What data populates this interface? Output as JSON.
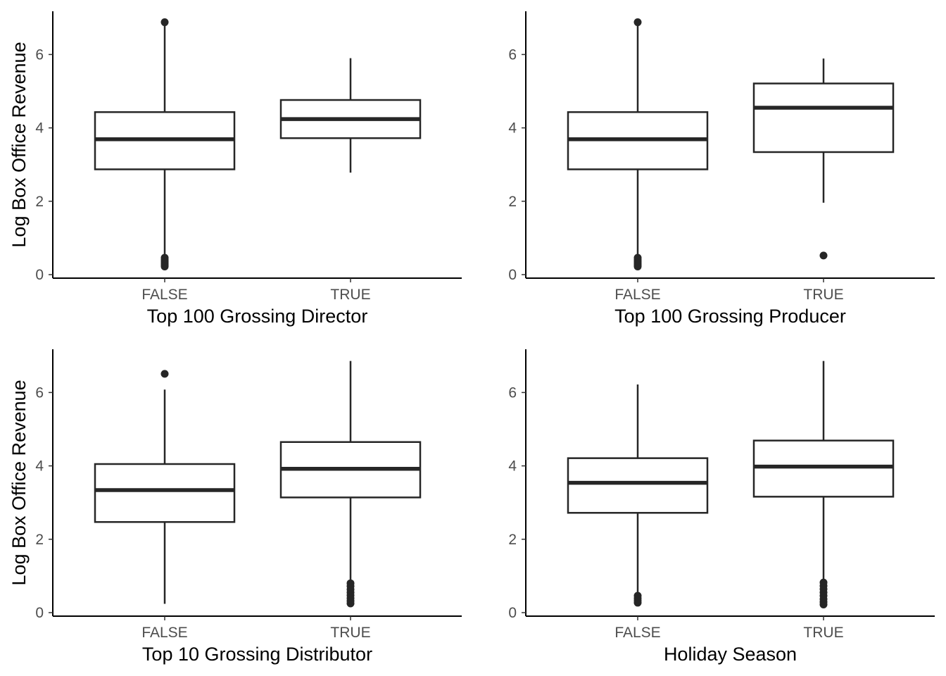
{
  "colors": {
    "ink": "#262626",
    "axis": "#000000",
    "tick_text": "#4d4d4d",
    "background": "#ffffff"
  },
  "chart_data": [
    {
      "type": "box",
      "xlabel": "Top 100 Grossing Director",
      "ylabel": "Log Box Office Revenue",
      "ylim": [
        0,
        7
      ],
      "yticks": [
        "0",
        "2",
        "4",
        "6"
      ],
      "categories": [
        "FALSE",
        "TRUE"
      ],
      "boxes": [
        {
          "category": "FALSE",
          "min": 0.55,
          "q1": 2.87,
          "median": 3.69,
          "q3": 4.43,
          "max": 6.88,
          "outliers": [
            6.88,
            0.46,
            0.41,
            0.37,
            0.33,
            0.29,
            0.25,
            0.22
          ]
        },
        {
          "category": "TRUE",
          "min": 2.78,
          "q1": 3.72,
          "median": 4.24,
          "q3": 4.76,
          "max": 5.9,
          "outliers": []
        }
      ]
    },
    {
      "type": "box",
      "xlabel": "Top 100 Grossing Producer",
      "ylabel": "",
      "ylim": [
        0,
        7
      ],
      "yticks": [
        "0",
        "2",
        "4",
        "6"
      ],
      "categories": [
        "FALSE",
        "TRUE"
      ],
      "boxes": [
        {
          "category": "FALSE",
          "min": 0.55,
          "q1": 2.87,
          "median": 3.69,
          "q3": 4.43,
          "max": 6.88,
          "outliers": [
            6.88,
            0.46,
            0.41,
            0.37,
            0.33,
            0.29,
            0.25,
            0.22
          ]
        },
        {
          "category": "TRUE",
          "min": 1.96,
          "q1": 3.34,
          "median": 4.55,
          "q3": 5.21,
          "max": 5.89,
          "outliers": [
            0.52
          ]
        }
      ]
    },
    {
      "type": "box",
      "xlabel": "Top 10 Grossing Distributor",
      "ylabel": "Log Box Office Revenue",
      "ylim": [
        0,
        7
      ],
      "yticks": [
        "0",
        "2",
        "4",
        "6"
      ],
      "categories": [
        "FALSE",
        "TRUE"
      ],
      "boxes": [
        {
          "category": "FALSE",
          "min": 0.24,
          "q1": 2.47,
          "median": 3.34,
          "q3": 4.05,
          "max": 6.08,
          "outliers": [
            6.51
          ]
        },
        {
          "category": "TRUE",
          "min": 0.9,
          "q1": 3.14,
          "median": 3.92,
          "q3": 4.65,
          "max": 6.86,
          "outliers": [
            0.8,
            0.72,
            0.63,
            0.55,
            0.47,
            0.39,
            0.32,
            0.25
          ]
        }
      ]
    },
    {
      "type": "box",
      "xlabel": "Holiday Season",
      "ylabel": "",
      "ylim": [
        0,
        7
      ],
      "yticks": [
        "0",
        "2",
        "4",
        "6"
      ],
      "categories": [
        "FALSE",
        "TRUE"
      ],
      "boxes": [
        {
          "category": "FALSE",
          "min": 0.55,
          "q1": 2.72,
          "median": 3.54,
          "q3": 4.21,
          "max": 6.22,
          "outliers": [
            0.46,
            0.39,
            0.33,
            0.27
          ]
        },
        {
          "category": "TRUE",
          "min": 0.9,
          "q1": 3.16,
          "median": 3.98,
          "q3": 4.69,
          "max": 6.86,
          "outliers": [
            0.82,
            0.73,
            0.64,
            0.55,
            0.46,
            0.37,
            0.29,
            0.22
          ]
        }
      ]
    }
  ]
}
